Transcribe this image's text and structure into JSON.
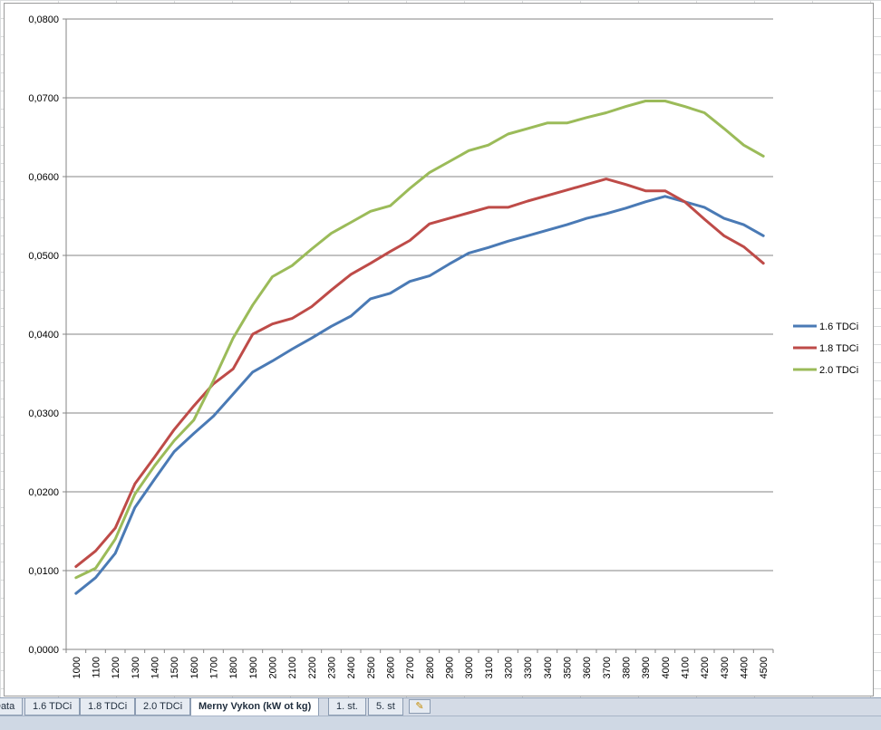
{
  "chart_data": {
    "type": "line",
    "title": "",
    "xlabel": "",
    "ylabel": "",
    "categories": [
      "1000",
      "1100",
      "1200",
      "1300",
      "1400",
      "1500",
      "1600",
      "1700",
      "1800",
      "1900",
      "2000",
      "2100",
      "2200",
      "2300",
      "2400",
      "2500",
      "2600",
      "2700",
      "2800",
      "2900",
      "3000",
      "3100",
      "3200",
      "3300",
      "3400",
      "3500",
      "3600",
      "3700",
      "3800",
      "3900",
      "4000",
      "4100",
      "4200",
      "4300",
      "4400",
      "4500"
    ],
    "ylim": [
      0,
      0.08
    ],
    "yticks": [
      "0,0000",
      "0,0100",
      "0,0200",
      "0,0300",
      "0,0400",
      "0,0500",
      "0,0600",
      "0,0700",
      "0,0800"
    ],
    "grid": true,
    "legend_position": "right",
    "series": [
      {
        "name": "1.6 TDCi",
        "color": "#4a7ab5",
        "values": [
          0.0071,
          0.0091,
          0.0122,
          0.018,
          0.0216,
          0.0251,
          0.0274,
          0.0296,
          0.0324,
          0.0352,
          0.0366,
          0.0381,
          0.0395,
          0.041,
          0.0423,
          0.0445,
          0.0452,
          0.0467,
          0.0474,
          0.0489,
          0.0503,
          0.051,
          0.0518,
          0.0525,
          0.0532,
          0.0539,
          0.0547,
          0.0553,
          0.056,
          0.0568,
          0.0575,
          0.0568,
          0.0561,
          0.0547,
          0.0539,
          0.0525
        ]
      },
      {
        "name": "1.8 TDCi",
        "color": "#be4b48",
        "values": [
          0.0105,
          0.0125,
          0.0154,
          0.021,
          0.0244,
          0.0279,
          0.0309,
          0.0337,
          0.0356,
          0.04,
          0.0413,
          0.042,
          0.0435,
          0.0456,
          0.0476,
          0.049,
          0.0505,
          0.0519,
          0.054,
          0.0547,
          0.0554,
          0.0561,
          0.0561,
          0.0569,
          0.0576,
          0.0583,
          0.059,
          0.0597,
          0.059,
          0.0582,
          0.0582,
          0.0568,
          0.0546,
          0.0525,
          0.0511,
          0.049
        ]
      },
      {
        "name": "2.0 TDCi",
        "color": "#9bbb59",
        "values": [
          0.0091,
          0.0103,
          0.014,
          0.0197,
          0.0233,
          0.0265,
          0.0291,
          0.0341,
          0.0395,
          0.0437,
          0.0473,
          0.0487,
          0.0508,
          0.0528,
          0.0542,
          0.0556,
          0.0563,
          0.0585,
          0.0605,
          0.0619,
          0.0633,
          0.064,
          0.0654,
          0.0661,
          0.0668,
          0.0668,
          0.0675,
          0.0681,
          0.0689,
          0.0696,
          0.0696,
          0.0689,
          0.0681,
          0.0661,
          0.064,
          0.0626
        ]
      }
    ]
  },
  "tabs": [
    {
      "label": "Data",
      "active": false
    },
    {
      "label": "1.6 TDCi",
      "active": false
    },
    {
      "label": "1.8 TDCi",
      "active": false
    },
    {
      "label": "2.0 TDCi",
      "active": false
    },
    {
      "label": "Merny Vykon (kW ot kg)",
      "active": true
    },
    {
      "label": "1. st.",
      "active": false
    },
    {
      "label": "5. st",
      "active": false
    }
  ],
  "insert_sheet_icon": "insert-sheet-icon"
}
